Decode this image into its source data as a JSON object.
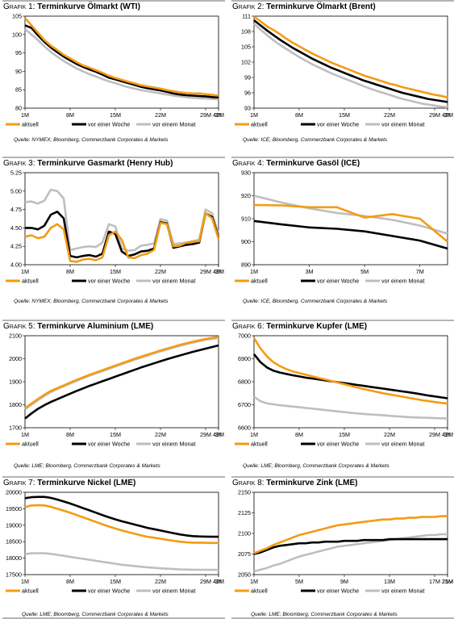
{
  "colors": {
    "aktuell": "#f39c12",
    "woche": "#000000",
    "monat": "#bebebe"
  },
  "legend_labels": [
    "aktuell",
    "vor einer Woche",
    "vor einem Monat"
  ],
  "chart_data": [
    {
      "type": "line",
      "title_prefix": "Grafik 1:",
      "title": "Terminkurve Ölmarkt (WTI)",
      "source": "Quelle: NYMEX; Bloomberg, Commerzbank Corporates & Markets",
      "x_ticks": [
        "1M",
        "8M",
        "15M",
        "22M",
        "29M",
        "3Y",
        "43M"
      ],
      "ylim": [
        80,
        105
      ],
      "y_ticks": [
        80,
        85,
        90,
        95,
        100,
        105
      ],
      "series": [
        {
          "name": "aktuell",
          "key": "aktuell",
          "values": [
            104.5,
            102.5,
            100.5,
            98.5,
            97,
            95.8,
            94.5,
            93.5,
            92.5,
            91.6,
            91,
            90.3,
            89.6,
            88.8,
            88.2,
            87.7,
            87.2,
            86.7,
            86.2,
            85.9,
            85.6,
            85.3,
            84.9,
            84.6,
            84.3,
            84.1,
            84,
            84,
            83.8,
            83.6,
            83.4
          ]
        },
        {
          "name": "vor einer Woche",
          "key": "woche",
          "values": [
            102.5,
            101.8,
            99.8,
            98,
            96.5,
            95.2,
            94,
            93,
            92,
            91.2,
            90.5,
            89.9,
            89.1,
            88.3,
            87.8,
            87.3,
            86.8,
            86.3,
            85.8,
            85.4,
            85.1,
            84.8,
            84.4,
            84,
            83.7,
            83.5,
            83.4,
            83.3,
            83.2,
            83,
            82.9
          ]
        },
        {
          "name": "vor einem Monat",
          "key": "monat",
          "values": [
            101.5,
            100,
            98.5,
            96.8,
            95.3,
            94,
            92.8,
            91.8,
            90.8,
            90,
            89.2,
            88.6,
            87.9,
            87.3,
            86.8,
            86.2,
            85.7,
            85.3,
            84.9,
            84.6,
            84.3,
            84,
            83.7,
            83.4,
            83.2,
            83,
            82.8,
            82.7,
            82.6,
            82.5,
            82.4
          ]
        }
      ]
    },
    {
      "type": "line",
      "title_prefix": "Grafik 2:",
      "title": "Terminkurve Ölmarkt (Brent)",
      "source": "Quelle: ICE, Bloomberg, Commerzbank Corporates & Markets",
      "x_ticks": [
        "1M",
        "8M",
        "15M",
        "22M",
        "29M",
        "3Y",
        "43M"
      ],
      "ylim": [
        93,
        111
      ],
      "y_ticks": [
        93,
        96,
        99,
        102,
        105,
        108,
        111
      ],
      "series": [
        {
          "name": "aktuell",
          "key": "aktuell",
          "values": [
            110.9,
            110,
            109,
            108.3,
            107.5,
            106.6,
            105.8,
            105.1,
            104.4,
            103.7,
            103.1,
            102.5,
            101.9,
            101.4,
            100.9,
            100.4,
            99.9,
            99.4,
            99,
            98.6,
            98.2,
            97.8,
            97.5,
            97.1,
            96.8,
            96.5,
            96.2,
            95.9,
            95.6,
            95.4,
            95.1
          ]
        },
        {
          "name": "vor einer Woche",
          "key": "woche",
          "values": [
            110.2,
            109.2,
            108.2,
            107.3,
            106.4,
            105.6,
            104.8,
            104.1,
            103.4,
            102.7,
            102.1,
            101.5,
            100.9,
            100.4,
            99.9,
            99.4,
            98.9,
            98.4,
            98,
            97.6,
            97.2,
            96.8,
            96.4,
            96,
            95.7,
            95.4,
            95.1,
            94.8,
            94.6,
            94.4,
            94.2
          ]
        },
        {
          "name": "vor einem Monat",
          "key": "monat",
          "values": [
            109.5,
            108.4,
            107.3,
            106.3,
            105.4,
            104.6,
            103.8,
            103,
            102.3,
            101.6,
            101,
            100.4,
            99.8,
            99.3,
            98.8,
            98.3,
            97.8,
            97.3,
            96.8,
            96.4,
            96,
            95.6,
            95.2,
            94.8,
            94.5,
            94.2,
            93.9,
            93.7,
            93.5,
            93.3,
            93.2
          ]
        }
      ]
    },
    {
      "type": "line",
      "title_prefix": "Grafik 3:",
      "title": "Terminkurve Gasmarkt (Henry Hub)",
      "source": "Quelle: NYMEX; Bloomberg, Commerzbank Corporates & Markets",
      "x_ticks": [
        "1M",
        "8M",
        "15M",
        "22M",
        "29M",
        "3Y",
        "43M"
      ],
      "ylim": [
        4,
        5.25
      ],
      "y_ticks": [
        4.0,
        4.25,
        4.5,
        4.75,
        5.0,
        5.25
      ],
      "y_decimals": 2,
      "series": [
        {
          "name": "aktuell",
          "key": "aktuell",
          "values": [
            4.38,
            4.4,
            4.36,
            4.38,
            4.5,
            4.55,
            4.48,
            4.05,
            4.04,
            4.07,
            4.08,
            4.06,
            4.1,
            4.4,
            4.45,
            4.34,
            4.1,
            4.09,
            4.13,
            4.15,
            4.2,
            4.57,
            4.55,
            4.25,
            4.26,
            4.3,
            4.31,
            4.32,
            4.7,
            4.63,
            4.35
          ]
        },
        {
          "name": "vor einer Woche",
          "key": "woche",
          "values": [
            4.5,
            4.5,
            4.48,
            4.53,
            4.68,
            4.72,
            4.63,
            4.12,
            4.1,
            4.12,
            4.13,
            4.11,
            4.15,
            4.45,
            4.42,
            4.18,
            4.12,
            4.14,
            4.18,
            4.19,
            4.22,
            4.58,
            4.56,
            4.23,
            4.25,
            4.27,
            4.28,
            4.3,
            4.7,
            4.65,
            4.37
          ]
        },
        {
          "name": "vor einem Monat",
          "key": "monat",
          "values": [
            4.85,
            4.86,
            4.83,
            4.87,
            5.02,
            5.0,
            4.9,
            4.2,
            4.22,
            4.24,
            4.25,
            4.24,
            4.3,
            4.55,
            4.52,
            4.22,
            4.19,
            4.2,
            4.26,
            4.27,
            4.29,
            4.62,
            4.6,
            4.28,
            4.29,
            4.3,
            4.32,
            4.34,
            4.75,
            4.7,
            4.42
          ]
        }
      ]
    },
    {
      "type": "line",
      "title_prefix": "Grafik 4:",
      "title": "Terminkurve Gasöl (ICE)",
      "source": "Quelle: ICE, Bloomberg, Commerzbank Corporates & Markets",
      "x_ticks": [
        "1M",
        "3M",
        "5M",
        "7M"
      ],
      "x_tick_pos": [
        0,
        2,
        4,
        6
      ],
      "ylim": [
        890,
        930
      ],
      "y_ticks": [
        890,
        900,
        910,
        920,
        930
      ],
      "series": [
        {
          "name": "aktuell",
          "key": "aktuell",
          "values": [
            916,
            915.8,
            915,
            915,
            910.5,
            912,
            910,
            900
          ]
        },
        {
          "name": "vor einer Woche",
          "key": "woche",
          "values": [
            909,
            907.5,
            906.2,
            905.6,
            904.5,
            902.5,
            900.5,
            897
          ]
        },
        {
          "name": "vor einem Monat",
          "key": "monat",
          "values": [
            920,
            917,
            914.5,
            912.5,
            911.2,
            909.5,
            907,
            903.5
          ]
        }
      ]
    },
    {
      "type": "line",
      "title_prefix": "Grafik 5:",
      "title": "Terminkurve Aluminium (LME)",
      "source": "Quelle: LME; Bloomberg, Commerzbank Corporates & Markets",
      "x_ticks": [
        "1M",
        "8M",
        "15M",
        "22M",
        "29M",
        "3Y",
        "43M"
      ],
      "ylim": [
        1700,
        2100
      ],
      "y_ticks": [
        1700,
        1800,
        1900,
        2000,
        2100
      ],
      "series": [
        {
          "name": "aktuell",
          "key": "aktuell",
          "values": [
            1785,
            1805,
            1825,
            1843,
            1860,
            1872,
            1884,
            1896,
            1908,
            1919,
            1930,
            1940,
            1950,
            1960,
            1970,
            1980,
            1990,
            2000,
            2009,
            2018,
            2027,
            2036,
            2044,
            2052,
            2060,
            2067,
            2074,
            2080,
            2086,
            2091,
            2095
          ]
        },
        {
          "name": "vor einer Woche",
          "key": "woche",
          "values": [
            1740,
            1762,
            1782,
            1798,
            1812,
            1824,
            1836,
            1848,
            1860,
            1871,
            1882,
            1892,
            1902,
            1912,
            1922,
            1932,
            1942,
            1952,
            1962,
            1971,
            1980,
            1989,
            1998,
            2006,
            2014,
            2022,
            2030,
            2037,
            2044,
            2051,
            2058
          ]
        },
        {
          "name": "vor einem Monat",
          "key": "monat",
          "values": [
            1780,
            1800,
            1820,
            1838,
            1855,
            1868,
            1880,
            1892,
            1904,
            1915,
            1926,
            1936,
            1946,
            1956,
            1966,
            1976,
            1986,
            1996,
            2005,
            2014,
            2023,
            2032,
            2040,
            2048,
            2056,
            2063,
            2070,
            2076,
            2082,
            2086,
            2090
          ]
        }
      ]
    },
    {
      "type": "line",
      "title_prefix": "Grafik 6:",
      "title": "Terminkurve Kupfer (LME)",
      "source": "Quelle: LME; Bloomberg, Commerzbank Corporates & Markets",
      "x_ticks": [
        "1M",
        "8M",
        "15M",
        "22M",
        "29M",
        "3Y",
        "43M"
      ],
      "ylim": [
        6600,
        7000
      ],
      "y_ticks": [
        6600,
        6700,
        6800,
        6900,
        7000
      ],
      "series": [
        {
          "name": "aktuell",
          "key": "aktuell",
          "values": [
            6990,
            6945,
            6910,
            6885,
            6868,
            6855,
            6845,
            6838,
            6831,
            6824,
            6817,
            6810,
            6803,
            6796,
            6789,
            6782,
            6775,
            6768,
            6762,
            6756,
            6750,
            6745,
            6740,
            6735,
            6730,
            6725,
            6720,
            6716,
            6712,
            6708,
            6705
          ]
        },
        {
          "name": "vor einer Woche",
          "key": "woche",
          "values": [
            6920,
            6885,
            6862,
            6848,
            6840,
            6834,
            6828,
            6823,
            6818,
            6814,
            6810,
            6806,
            6802,
            6798,
            6794,
            6790,
            6786,
            6782,
            6778,
            6774,
            6770,
            6766,
            6762,
            6758,
            6754,
            6750,
            6745,
            6740,
            6736,
            6732,
            6728
          ]
        },
        {
          "name": "vor einem Monat",
          "key": "monat",
          "values": [
            6735,
            6715,
            6706,
            6702,
            6698,
            6695,
            6692,
            6689,
            6686,
            6683,
            6680,
            6677,
            6674,
            6671,
            6668,
            6665,
            6662,
            6660,
            6658,
            6656,
            6654,
            6652,
            6650,
            6648,
            6646,
            6645,
            6644,
            6643,
            6642,
            6641,
            6640
          ]
        }
      ]
    },
    {
      "type": "line",
      "title_prefix": "Grafik 7:",
      "title": "Terminkurve Nickel (LME)",
      "source": "Quelle: LME; Bloomberg, Commerzbank Corporates & Markets",
      "x_ticks": [
        "1M",
        "8M",
        "15M",
        "22M",
        "29M",
        "3Y",
        "43M"
      ],
      "ylim": [
        17500,
        20000
      ],
      "y_ticks": [
        17500,
        18000,
        18500,
        19000,
        19500,
        20000
      ],
      "series": [
        {
          "name": "aktuell",
          "key": "aktuell",
          "values": [
            19550,
            19600,
            19610,
            19600,
            19560,
            19500,
            19440,
            19380,
            19310,
            19240,
            19170,
            19100,
            19030,
            18960,
            18900,
            18840,
            18790,
            18740,
            18690,
            18650,
            18620,
            18590,
            18560,
            18530,
            18500,
            18480,
            18470,
            18470,
            18465,
            18460,
            18460
          ]
        },
        {
          "name": "vor einer Woche",
          "key": "woche",
          "values": [
            19820,
            19850,
            19860,
            19860,
            19830,
            19780,
            19720,
            19660,
            19590,
            19520,
            19450,
            19380,
            19310,
            19240,
            19180,
            19120,
            19070,
            19020,
            18970,
            18920,
            18880,
            18840,
            18800,
            18760,
            18720,
            18690,
            18670,
            18660,
            18655,
            18650,
            18650
          ]
        },
        {
          "name": "vor einem Monat",
          "key": "monat",
          "values": [
            18120,
            18150,
            18150,
            18150,
            18130,
            18100,
            18070,
            18040,
            18010,
            17980,
            17950,
            17920,
            17890,
            17860,
            17830,
            17800,
            17780,
            17760,
            17740,
            17720,
            17705,
            17690,
            17680,
            17670,
            17660,
            17655,
            17650,
            17648,
            17646,
            17645,
            17645
          ]
        }
      ]
    },
    {
      "type": "line",
      "title_prefix": "Grafik 8:",
      "title": "Terminkurve Zink (LME)",
      "source": "Quelle: LME; Bloomberg, Commerzbank Corporates & Markets",
      "x_ticks": [
        "1M",
        "5M",
        "9M",
        "13M",
        "17M",
        "21M",
        "25M"
      ],
      "ylim": [
        2050,
        2150
      ],
      "y_ticks": [
        2050,
        2075,
        2100,
        2125,
        2150
      ],
      "series": [
        {
          "name": "aktuell",
          "key": "aktuell",
          "values": [
            2076,
            2079,
            2082,
            2086,
            2089,
            2092,
            2095,
            2098,
            2100,
            2102,
            2104,
            2106,
            2108,
            2110,
            2111,
            2112,
            2113,
            2114,
            2115,
            2116,
            2117,
            2117,
            2118,
            2118,
            2119,
            2119,
            2120,
            2120,
            2120,
            2121,
            2121
          ]
        },
        {
          "name": "vor einer Woche",
          "key": "woche",
          "values": [
            2075,
            2077,
            2080,
            2083,
            2085,
            2086,
            2087,
            2088,
            2088,
            2089,
            2089,
            2090,
            2090,
            2090,
            2091,
            2091,
            2091,
            2092,
            2092,
            2092,
            2092,
            2093,
            2093,
            2093,
            2093,
            2093,
            2093,
            2093,
            2093,
            2093,
            2093
          ]
        },
        {
          "name": "vor einem Monat",
          "key": "monat",
          "values": [
            2054,
            2056,
            2058,
            2061,
            2063,
            2066,
            2069,
            2072,
            2074,
            2076,
            2078,
            2080,
            2082,
            2084,
            2085,
            2086,
            2087,
            2088,
            2089,
            2090,
            2091,
            2092,
            2093,
            2094,
            2095,
            2096,
            2097,
            2098,
            2098,
            2099,
            2099
          ]
        }
      ]
    }
  ]
}
